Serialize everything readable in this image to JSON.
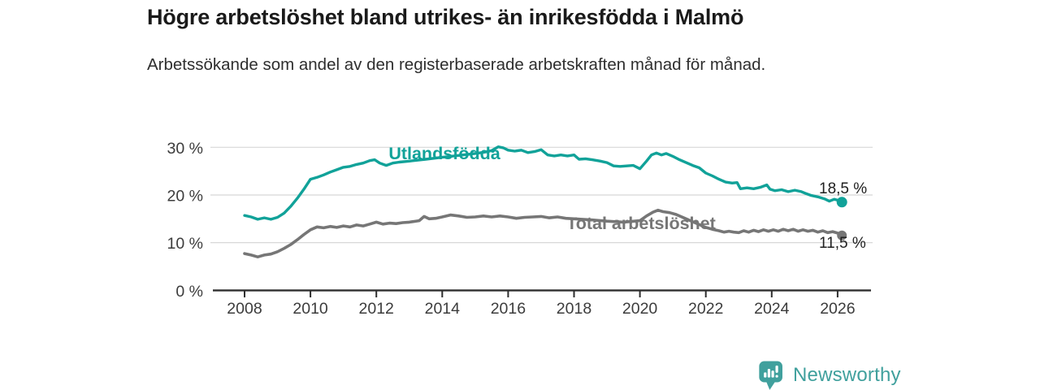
{
  "chart_data": {
    "type": "line",
    "title": "Högre arbetslöshet bland utrikes- än inrikesfödda i Malmö",
    "subtitle": "Arbetssökande som andel av den registerbaserade arbetskraften månad för månad.",
    "xlabel": "",
    "ylabel": "",
    "grid": true,
    "legend_position": "inline-labels",
    "ylim": [
      0,
      31.5
    ],
    "xlim": [
      2007.1,
      2027.1
    ],
    "x_axis": {
      "ticks": [
        2008,
        2010,
        2012,
        2014,
        2016,
        2018,
        2020,
        2022,
        2024,
        2026
      ]
    },
    "y_axis": {
      "ticks": [
        {
          "value": 0,
          "label": "0 %"
        },
        {
          "value": 10,
          "label": "10 %"
        },
        {
          "value": 20,
          "label": "20 %"
        },
        {
          "value": 30,
          "label": "30 %"
        }
      ]
    },
    "series": [
      {
        "name": "Utlandsfödda",
        "color": "#11a299",
        "end_label": "18,5 %",
        "end_value": 18.5,
        "points": [
          [
            2008.0,
            15.7
          ],
          [
            2008.2,
            15.4
          ],
          [
            2008.4,
            14.9
          ],
          [
            2008.6,
            15.2
          ],
          [
            2008.8,
            14.9
          ],
          [
            2009.0,
            15.3
          ],
          [
            2009.2,
            16.2
          ],
          [
            2009.4,
            17.6
          ],
          [
            2009.6,
            19.3
          ],
          [
            2009.8,
            21.2
          ],
          [
            2010.0,
            23.3
          ],
          [
            2010.2,
            23.7
          ],
          [
            2010.4,
            24.2
          ],
          [
            2010.6,
            24.8
          ],
          [
            2010.8,
            25.3
          ],
          [
            2011.0,
            25.8
          ],
          [
            2011.2,
            26.0
          ],
          [
            2011.4,
            26.4
          ],
          [
            2011.6,
            26.7
          ],
          [
            2011.8,
            27.2
          ],
          [
            2011.95,
            27.4
          ],
          [
            2012.1,
            26.7
          ],
          [
            2012.3,
            26.2
          ],
          [
            2012.5,
            26.7
          ],
          [
            2012.7,
            26.9
          ],
          [
            2013.0,
            27.1
          ],
          [
            2013.5,
            27.5
          ],
          [
            2014.0,
            27.9
          ],
          [
            2014.5,
            28.3
          ],
          [
            2015.0,
            28.7
          ],
          [
            2015.3,
            29.0
          ],
          [
            2015.5,
            29.3
          ],
          [
            2015.7,
            30.1
          ],
          [
            2015.85,
            29.9
          ],
          [
            2016.0,
            29.4
          ],
          [
            2016.2,
            29.2
          ],
          [
            2016.4,
            29.4
          ],
          [
            2016.6,
            28.9
          ],
          [
            2016.8,
            29.1
          ],
          [
            2017.0,
            29.5
          ],
          [
            2017.2,
            28.4
          ],
          [
            2017.4,
            28.2
          ],
          [
            2017.6,
            28.4
          ],
          [
            2017.8,
            28.2
          ],
          [
            2018.0,
            28.4
          ],
          [
            2018.15,
            27.5
          ],
          [
            2018.35,
            27.6
          ],
          [
            2018.55,
            27.4
          ],
          [
            2018.8,
            27.1
          ],
          [
            2019.0,
            26.8
          ],
          [
            2019.2,
            26.1
          ],
          [
            2019.4,
            26.0
          ],
          [
            2019.6,
            26.1
          ],
          [
            2019.8,
            26.2
          ],
          [
            2020.0,
            25.5
          ],
          [
            2020.2,
            27.1
          ],
          [
            2020.35,
            28.4
          ],
          [
            2020.5,
            28.8
          ],
          [
            2020.65,
            28.4
          ],
          [
            2020.8,
            28.7
          ],
          [
            2021.0,
            28.1
          ],
          [
            2021.2,
            27.4
          ],
          [
            2021.4,
            26.8
          ],
          [
            2021.6,
            26.2
          ],
          [
            2021.8,
            25.7
          ],
          [
            2022.0,
            24.6
          ],
          [
            2022.2,
            24.0
          ],
          [
            2022.4,
            23.3
          ],
          [
            2022.6,
            22.7
          ],
          [
            2022.8,
            22.5
          ],
          [
            2022.95,
            22.6
          ],
          [
            2023.05,
            21.3
          ],
          [
            2023.25,
            21.5
          ],
          [
            2023.45,
            21.3
          ],
          [
            2023.65,
            21.6
          ],
          [
            2023.85,
            22.1
          ],
          [
            2023.95,
            21.2
          ],
          [
            2024.1,
            20.9
          ],
          [
            2024.3,
            21.1
          ],
          [
            2024.5,
            20.7
          ],
          [
            2024.7,
            21.0
          ],
          [
            2024.9,
            20.7
          ],
          [
            2025.0,
            20.4
          ],
          [
            2025.2,
            19.9
          ],
          [
            2025.4,
            19.6
          ],
          [
            2025.6,
            19.2
          ],
          [
            2025.75,
            18.7
          ],
          [
            2025.9,
            19.1
          ],
          [
            2026.0,
            18.9
          ],
          [
            2026.13,
            18.5
          ]
        ]
      },
      {
        "name": "Total arbetslöshet",
        "color": "#767676",
        "end_label": "11,5 %",
        "end_value": 11.5,
        "points": [
          [
            2008.0,
            7.7
          ],
          [
            2008.2,
            7.4
          ],
          [
            2008.4,
            7.0
          ],
          [
            2008.6,
            7.4
          ],
          [
            2008.8,
            7.6
          ],
          [
            2009.0,
            8.1
          ],
          [
            2009.2,
            8.8
          ],
          [
            2009.4,
            9.6
          ],
          [
            2009.6,
            10.6
          ],
          [
            2009.8,
            11.7
          ],
          [
            2010.0,
            12.7
          ],
          [
            2010.2,
            13.3
          ],
          [
            2010.4,
            13.1
          ],
          [
            2010.6,
            13.4
          ],
          [
            2010.8,
            13.2
          ],
          [
            2011.0,
            13.5
          ],
          [
            2011.2,
            13.3
          ],
          [
            2011.4,
            13.7
          ],
          [
            2011.6,
            13.5
          ],
          [
            2011.8,
            13.9
          ],
          [
            2012.0,
            14.3
          ],
          [
            2012.2,
            13.9
          ],
          [
            2012.4,
            14.1
          ],
          [
            2012.6,
            14.0
          ],
          [
            2012.8,
            14.2
          ],
          [
            2013.0,
            14.3
          ],
          [
            2013.3,
            14.6
          ],
          [
            2013.45,
            15.5
          ],
          [
            2013.6,
            15.0
          ],
          [
            2013.8,
            15.1
          ],
          [
            2014.0,
            15.4
          ],
          [
            2014.25,
            15.8
          ],
          [
            2014.5,
            15.6
          ],
          [
            2014.75,
            15.3
          ],
          [
            2015.0,
            15.4
          ],
          [
            2015.25,
            15.6
          ],
          [
            2015.5,
            15.4
          ],
          [
            2015.75,
            15.6
          ],
          [
            2016.0,
            15.4
          ],
          [
            2016.25,
            15.1
          ],
          [
            2016.5,
            15.3
          ],
          [
            2016.75,
            15.4
          ],
          [
            2017.0,
            15.5
          ],
          [
            2017.25,
            15.2
          ],
          [
            2017.5,
            15.4
          ],
          [
            2017.75,
            15.1
          ],
          [
            2018.0,
            15.0
          ],
          [
            2018.5,
            14.8
          ],
          [
            2019.0,
            14.5
          ],
          [
            2019.5,
            14.3
          ],
          [
            2020.0,
            14.6
          ],
          [
            2020.2,
            15.6
          ],
          [
            2020.4,
            16.4
          ],
          [
            2020.55,
            16.8
          ],
          [
            2020.7,
            16.5
          ],
          [
            2020.9,
            16.3
          ],
          [
            2021.1,
            15.9
          ],
          [
            2021.4,
            15.0
          ],
          [
            2021.7,
            14.1
          ],
          [
            2022.0,
            13.2
          ],
          [
            2022.2,
            12.8
          ],
          [
            2022.4,
            12.5
          ],
          [
            2022.55,
            12.2
          ],
          [
            2022.7,
            12.4
          ],
          [
            2022.85,
            12.2
          ],
          [
            2023.0,
            12.1
          ],
          [
            2023.15,
            12.5
          ],
          [
            2023.3,
            12.2
          ],
          [
            2023.45,
            12.6
          ],
          [
            2023.6,
            12.3
          ],
          [
            2023.75,
            12.7
          ],
          [
            2023.9,
            12.4
          ],
          [
            2024.05,
            12.7
          ],
          [
            2024.2,
            12.4
          ],
          [
            2024.35,
            12.8
          ],
          [
            2024.5,
            12.5
          ],
          [
            2024.65,
            12.8
          ],
          [
            2024.8,
            12.4
          ],
          [
            2024.95,
            12.7
          ],
          [
            2025.1,
            12.4
          ],
          [
            2025.25,
            12.6
          ],
          [
            2025.4,
            12.2
          ],
          [
            2025.55,
            12.5
          ],
          [
            2025.7,
            12.1
          ],
          [
            2025.85,
            12.3
          ],
          [
            2026.0,
            12.0
          ],
          [
            2026.13,
            11.5
          ]
        ]
      }
    ],
    "colors": {
      "grid": "#d8d8d8",
      "axis": "#2e2e2e",
      "tick_text": "#3c3c3c",
      "value_text": "#1f1f1f"
    }
  },
  "footer": {
    "brand": "Newsworthy",
    "brand_color": "#40a09d",
    "logo_icon": "bar-chart-speech-bubble"
  }
}
